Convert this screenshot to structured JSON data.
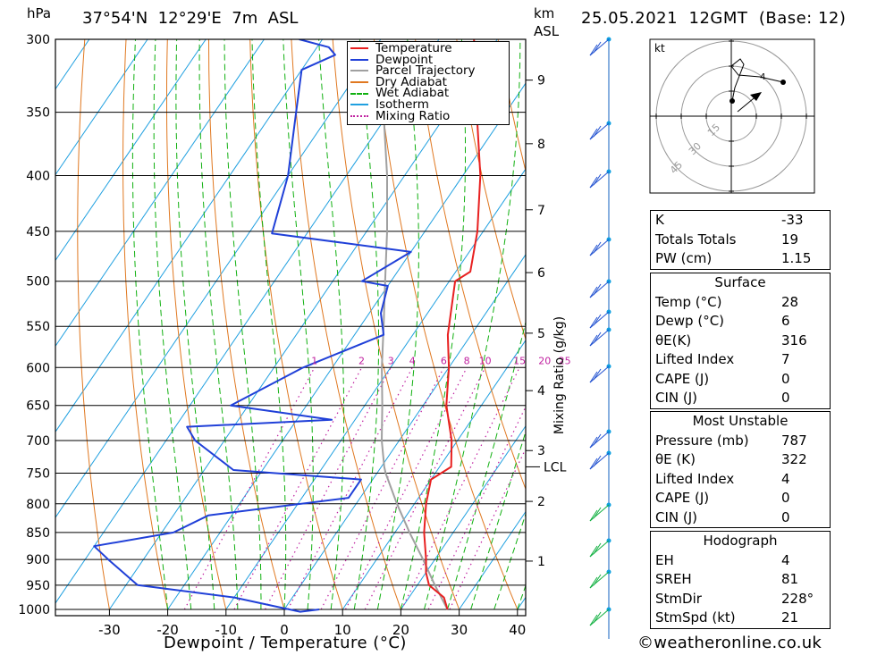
{
  "header": {
    "hpa_label": "hPa",
    "location": "37°54'N  12°29'E  7m  ASL",
    "km_label": "km",
    "asl_label": "ASL",
    "datetime": "25.05.2021  12GMT  (Base: 12)"
  },
  "chart_data": {
    "type": "skew-t",
    "title": "37°54'N  12°29'E  7m  ASL",
    "xlabel": "Dewpoint / Temperature (°C)",
    "ylabel": "hPa",
    "x_ticks": [
      -30,
      -20,
      -10,
      0,
      10,
      20,
      30,
      40
    ],
    "pressure_ticks": [
      300,
      350,
      400,
      450,
      500,
      550,
      600,
      650,
      700,
      750,
      800,
      850,
      900,
      950,
      1000
    ],
    "pressure_range": [
      300,
      1000
    ],
    "km_ticks": [
      {
        "label": "1",
        "p": 903
      },
      {
        "label": "2",
        "p": 796
      },
      {
        "label": "3",
        "p": 715
      },
      {
        "label": "4",
        "p": 630
      },
      {
        "label": "5",
        "p": 558
      },
      {
        "label": "6",
        "p": 491
      },
      {
        "label": "7",
        "p": 430
      },
      {
        "label": "8",
        "p": 374
      },
      {
        "label": "9",
        "p": 327
      }
    ],
    "lcl_label": "LCL",
    "lcl_pressure": 740,
    "mixing_ratio_axis_label": "Mixing Ratio (g/kg)",
    "mixing_ratio_labels": [
      "1",
      "2",
      "3",
      "4",
      "6",
      "8",
      "10",
      "15",
      "20",
      "25"
    ],
    "legend": [
      {
        "name": "Temperature",
        "color": "#e82020",
        "style": "solid"
      },
      {
        "name": "Dewpoint",
        "color": "#2040d8",
        "style": "solid"
      },
      {
        "name": "Parcel Trajectory",
        "color": "#a0a0a0",
        "style": "solid"
      },
      {
        "name": "Dry Adiabat",
        "color": "#e07820",
        "style": "solid"
      },
      {
        "name": "Wet Adiabat",
        "color": "#10b010",
        "style": "dashed"
      },
      {
        "name": "Isotherm",
        "color": "#20a0e0",
        "style": "solid"
      },
      {
        "name": "Mixing Ratio",
        "color": "#c020a0",
        "style": "dotted"
      }
    ],
    "temperature_profile": [
      {
        "p": 1000,
        "t": 28
      },
      {
        "p": 975,
        "t": 26
      },
      {
        "p": 950,
        "t": 22
      },
      {
        "p": 925,
        "t": 20
      },
      {
        "p": 900,
        "t": 18.5
      },
      {
        "p": 850,
        "t": 15
      },
      {
        "p": 800,
        "t": 12
      },
      {
        "p": 760,
        "t": 10
      },
      {
        "p": 740,
        "t": 12
      },
      {
        "p": 700,
        "t": 9
      },
      {
        "p": 650,
        "t": 4
      },
      {
        "p": 600,
        "t": 0
      },
      {
        "p": 560,
        "t": -4
      },
      {
        "p": 500,
        "t": -9
      },
      {
        "p": 490,
        "t": -7.5
      },
      {
        "p": 450,
        "t": -11
      },
      {
        "p": 400,
        "t": -17
      },
      {
        "p": 350,
        "t": -25
      },
      {
        "p": 300,
        "t": -34
      },
      {
        "p": 295,
        "t": -35
      }
    ],
    "dewpoint_profile": [
      {
        "p": 1000,
        "t": 6
      },
      {
        "p": 1005,
        "t": 3
      },
      {
        "p": 975,
        "t": -10
      },
      {
        "p": 950,
        "t": -28
      },
      {
        "p": 900,
        "t": -36
      },
      {
        "p": 875,
        "t": -40
      },
      {
        "p": 850,
        "t": -28
      },
      {
        "p": 820,
        "t": -24
      },
      {
        "p": 790,
        "t": -2
      },
      {
        "p": 760,
        "t": -2
      },
      {
        "p": 745,
        "t": -25
      },
      {
        "p": 700,
        "t": -35
      },
      {
        "p": 680,
        "t": -38
      },
      {
        "p": 670,
        "t": -14
      },
      {
        "p": 650,
        "t": -33
      },
      {
        "p": 600,
        "t": -25
      },
      {
        "p": 560,
        "t": -15
      },
      {
        "p": 535,
        "t": -18
      },
      {
        "p": 505,
        "t": -20
      },
      {
        "p": 500,
        "t": -25
      },
      {
        "p": 470,
        "t": -20
      },
      {
        "p": 452,
        "t": -46
      },
      {
        "p": 400,
        "t": -50
      },
      {
        "p": 350,
        "t": -56
      },
      {
        "p": 320,
        "t": -60
      },
      {
        "p": 310,
        "t": -56
      },
      {
        "p": 305,
        "t": -58
      },
      {
        "p": 300,
        "t": -64
      }
    ],
    "parcel_profile": [
      {
        "p": 1000,
        "t": 28
      },
      {
        "p": 950,
        "t": 23
      },
      {
        "p": 900,
        "t": 18
      },
      {
        "p": 850,
        "t": 12.5
      },
      {
        "p": 800,
        "t": 7
      },
      {
        "p": 750,
        "t": 1.5
      },
      {
        "p": 740,
        "t": 0.5
      },
      {
        "p": 700,
        "t": -3
      },
      {
        "p": 650,
        "t": -7
      },
      {
        "p": 600,
        "t": -11.5
      },
      {
        "p": 550,
        "t": -16
      },
      {
        "p": 500,
        "t": -21
      },
      {
        "p": 450,
        "t": -26.5
      },
      {
        "p": 400,
        "t": -33
      },
      {
        "p": 350,
        "t": -41
      },
      {
        "p": 310,
        "t": -48
      }
    ],
    "hodograph_label": "kt",
    "hodograph_ring_labels": [
      "15",
      "30",
      "45"
    ]
  },
  "indices": {
    "general": [
      {
        "label": "K",
        "value": "-33"
      },
      {
        "label": "Totals Totals",
        "value": "19"
      },
      {
        "label": "PW (cm)",
        "value": "1.15"
      }
    ],
    "surface_title": "Surface",
    "surface": [
      {
        "label": "Temp (°C)",
        "value": "28"
      },
      {
        "label": "Dewp (°C)",
        "value": "6"
      },
      {
        "label": "θE(K)",
        "value": "316"
      },
      {
        "label": "Lifted Index",
        "value": "7"
      },
      {
        "label": "CAPE (J)",
        "value": "0"
      },
      {
        "label": "CIN (J)",
        "value": "0"
      }
    ],
    "unstable_title": "Most Unstable",
    "unstable": [
      {
        "label": "Pressure (mb)",
        "value": "787"
      },
      {
        "label": "θE (K)",
        "value": "322"
      },
      {
        "label": "Lifted Index",
        "value": "4"
      },
      {
        "label": "CAPE (J)",
        "value": "0"
      },
      {
        "label": "CIN (J)",
        "value": "0"
      }
    ],
    "hodograph_title": "Hodograph",
    "hodograph": [
      {
        "label": "EH",
        "value": "4"
      },
      {
        "label": "SREH",
        "value": "81"
      },
      {
        "label": "StmDir",
        "value": "228°"
      },
      {
        "label": "StmSpd (kt)",
        "value": "21"
      }
    ]
  },
  "footer": {
    "site": "©weatheronline.co.uk"
  },
  "colors": {
    "temperature": "#e82020",
    "dewpoint": "#2040d8",
    "parcel": "#a0a0a0",
    "dry_adiabat": "#e07820",
    "wet_adiabat": "#10b010",
    "isotherm": "#20a0e0",
    "mixing_ratio": "#c020a0"
  }
}
